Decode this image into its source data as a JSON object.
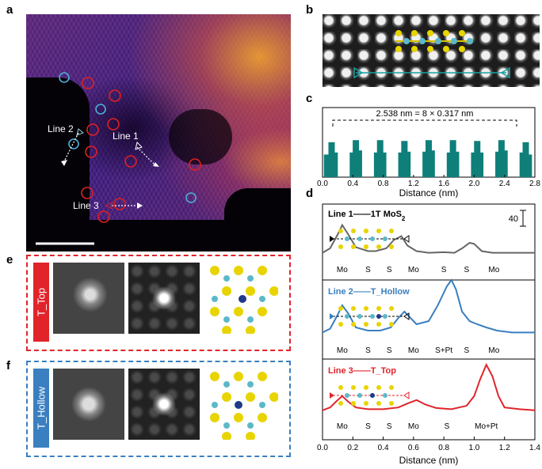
{
  "panels": {
    "a": {
      "label": "a",
      "annotations": [
        "Line 1",
        "Line 2",
        "Line 3"
      ]
    },
    "b": {
      "label": "b"
    },
    "c": {
      "label": "c",
      "annotation": "2.538 nm = 8 × 0.317 nm",
      "xlabel": "Distance (nm)",
      "xticks": [
        "0.0",
        "0.4",
        "0.8",
        "1.2",
        "1.6",
        "2.0",
        "2.4",
        "2.8"
      ]
    },
    "d": {
      "label": "d",
      "scale": "40",
      "xlabel": "Distance (nm)",
      "xticks": [
        "0.0",
        "0.2",
        "0.4",
        "0.6",
        "0.8",
        "1.0",
        "1.2",
        "1.4"
      ],
      "lines": [
        {
          "title": "Line 1",
          "sep": "——",
          "name": "1T MoS",
          "sub": "2",
          "color": "#666666",
          "labels": [
            "Mo",
            "S",
            "S",
            "Mo",
            "S",
            "S",
            "Mo"
          ]
        },
        {
          "title": "Line 2",
          "sep": "——",
          "name": "T_Hollow",
          "sub": "",
          "color": "#3a7fc0",
          "labels": [
            "Mo",
            "S",
            "S",
            "Mo",
            "S+Pt",
            "S",
            "Mo"
          ]
        },
        {
          "title": "Line 3",
          "sep": "——",
          "name": "T_Top",
          "sub": "",
          "color": "#e0242a",
          "labels": [
            "Mo",
            "S",
            "S",
            "Mo",
            "S",
            "Mo+Pt"
          ]
        }
      ]
    },
    "e": {
      "label": "e",
      "side": "T_Top",
      "color": "#e0242a"
    },
    "f": {
      "label": "f",
      "side": "T_Hollow",
      "color": "#3a7fc0"
    }
  },
  "chart_data": [
    {
      "type": "bar",
      "title": "",
      "xlabel": "Distance (nm)",
      "ylabel": "",
      "xlim": [
        0,
        2.8
      ],
      "x": [
        0.06,
        0.12,
        0.16,
        0.4,
        0.44,
        0.48,
        0.72,
        0.76,
        0.8,
        1.04,
        1.08,
        1.12,
        1.36,
        1.4,
        1.44,
        1.68,
        1.72,
        1.76,
        2.0,
        2.04,
        2.08,
        2.32,
        2.36,
        2.4,
        2.64,
        2.68,
        2.72
      ],
      "values": [
        0.55,
        0.85,
        0.6,
        0.6,
        0.9,
        0.65,
        0.6,
        0.9,
        0.6,
        0.6,
        0.88,
        0.62,
        0.62,
        0.9,
        0.65,
        0.6,
        0.9,
        0.62,
        0.6,
        0.88,
        0.6,
        0.62,
        0.9,
        0.65,
        0.6,
        0.85,
        0.55
      ],
      "color": "#0f7f7a"
    },
    {
      "type": "line",
      "xlabel": "Distance (nm)",
      "xlim": [
        0,
        1.4
      ],
      "series": [
        {
          "name": "Line 1",
          "color": "#666666",
          "x": [
            0.0,
            0.05,
            0.1,
            0.13,
            0.17,
            0.22,
            0.3,
            0.35,
            0.42,
            0.47,
            0.52,
            0.56,
            0.62,
            0.7,
            0.8,
            0.87,
            0.92,
            0.97,
            1.0,
            1.05,
            1.12,
            1.2,
            1.3,
            1.4
          ],
          "y": [
            0.12,
            0.2,
            0.45,
            0.62,
            0.45,
            0.22,
            0.15,
            0.15,
            0.2,
            0.35,
            0.42,
            0.25,
            0.15,
            0.12,
            0.13,
            0.12,
            0.2,
            0.3,
            0.28,
            0.15,
            0.12,
            0.12,
            0.12,
            0.12
          ]
        },
        {
          "name": "Line 2",
          "color": "#3a7fc0",
          "x": [
            0.0,
            0.05,
            0.1,
            0.13,
            0.17,
            0.22,
            0.3,
            0.38,
            0.45,
            0.5,
            0.54,
            0.58,
            0.62,
            0.7,
            0.76,
            0.82,
            0.85,
            0.88,
            0.92,
            0.97,
            1.02,
            1.08,
            1.15,
            1.25,
            1.4
          ],
          "y": [
            0.12,
            0.18,
            0.4,
            0.55,
            0.42,
            0.2,
            0.15,
            0.15,
            0.2,
            0.35,
            0.45,
            0.35,
            0.25,
            0.3,
            0.55,
            0.85,
            0.95,
            0.8,
            0.45,
            0.3,
            0.25,
            0.2,
            0.15,
            0.12,
            0.12
          ]
        },
        {
          "name": "Line 3",
          "color": "#e0242a",
          "x": [
            0.0,
            0.05,
            0.1,
            0.13,
            0.17,
            0.22,
            0.3,
            0.4,
            0.5,
            0.56,
            0.62,
            0.68,
            0.75,
            0.85,
            0.95,
            1.0,
            1.04,
            1.08,
            1.12,
            1.16,
            1.2,
            1.3,
            1.4
          ],
          "y": [
            0.1,
            0.15,
            0.28,
            0.35,
            0.25,
            0.15,
            0.12,
            0.12,
            0.15,
            0.22,
            0.28,
            0.2,
            0.14,
            0.12,
            0.18,
            0.35,
            0.65,
            0.9,
            0.7,
            0.35,
            0.15,
            0.12,
            0.1
          ]
        }
      ]
    }
  ]
}
